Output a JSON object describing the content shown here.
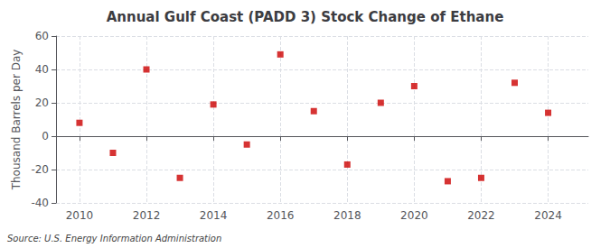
{
  "chart_data": {
    "type": "scatter",
    "title": "Annual Gulf Coast (PADD 3) Stock Change of Ethane",
    "ylabel": "Thousand Barrels per Day",
    "annotation": "Source: U.S. Energy Information Administration",
    "x": [
      2010,
      2011,
      2012,
      2013,
      2014,
      2015,
      2016,
      2017,
      2018,
      2019,
      2020,
      2021,
      2022,
      2023,
      2024
    ],
    "values": [
      8,
      -10,
      40,
      -25,
      19,
      -5,
      49,
      15,
      -17,
      20,
      30,
      -27,
      -25,
      32,
      14
    ],
    "color": "#cc0000",
    "marker": "square",
    "xlim": [
      2009.3,
      2025.2
    ],
    "xticks": [
      2010,
      2012,
      2014,
      2016,
      2018,
      2020,
      2022,
      2024
    ],
    "ylim": [
      -40,
      60
    ],
    "yticks": [
      -40,
      -20,
      0,
      20,
      40,
      60
    ],
    "grid": true
  }
}
